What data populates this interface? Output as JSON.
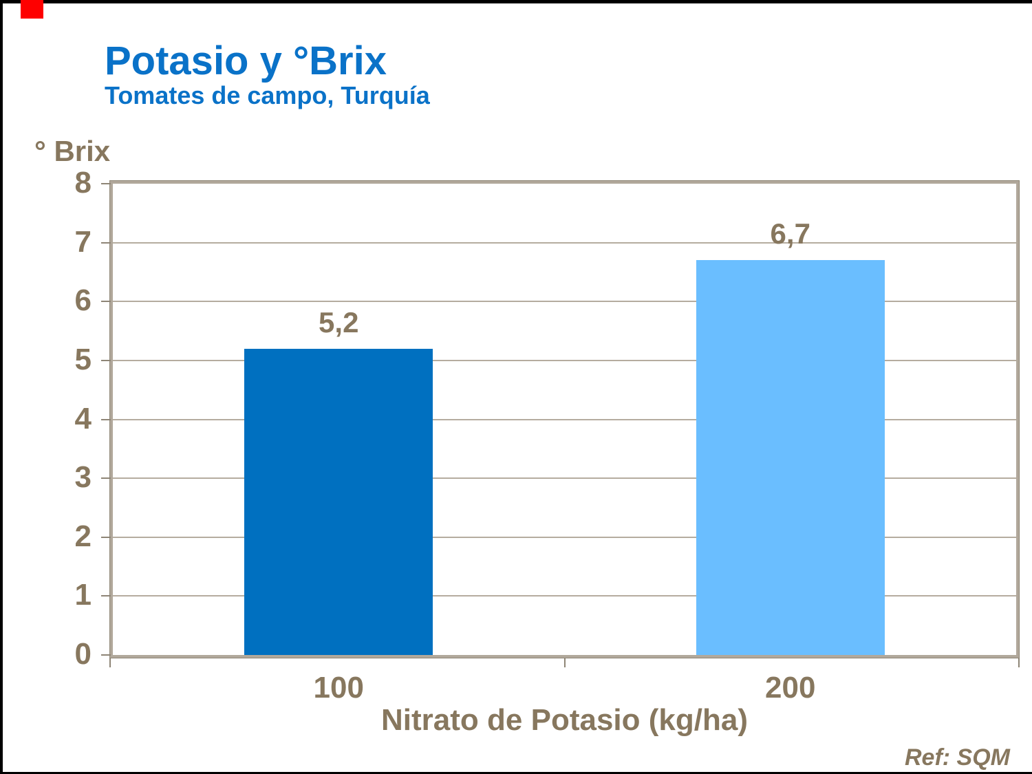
{
  "slide": {
    "title": "Potasio y °Brix",
    "subtitle": "Tomates de campo, Turquía",
    "reference": "Ref: SQM",
    "title_color": "#0a72c8",
    "accent_red_color": "#fe0000",
    "text_color": "#87775e",
    "frame_color": "#b1a89b",
    "grid_color": "#b5ac9f"
  },
  "chart_data": {
    "type": "bar",
    "title": "Potasio y °Brix",
    "subtitle": "Tomates de campo, Turquía",
    "ylabel": "° Brix",
    "xlabel": "Nitrato de Potasio (kg/ha)",
    "categories": [
      "100",
      "200"
    ],
    "values": [
      5.2,
      6.7
    ],
    "value_labels": [
      "5,2",
      "6,7"
    ],
    "bar_colors": [
      "#0070c0",
      "#6abeff"
    ],
    "ylim": [
      0,
      8
    ],
    "y_ticks": [
      0,
      1,
      2,
      3,
      4,
      5,
      6,
      7,
      8
    ],
    "grid": true,
    "legend": "none",
    "annotation": "Ref: SQM"
  }
}
